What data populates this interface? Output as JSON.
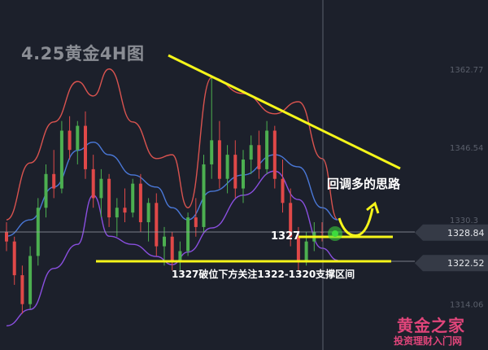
{
  "title": "4.25黄金4H图",
  "annotations": {
    "strategy": "回调多的思路",
    "level_label": "1327",
    "support_note": "1327破位下方关注1322-1320支撑区间"
  },
  "watermark": {
    "line1": "黄金之家",
    "line2": "投资理财入门网"
  },
  "colors": {
    "background": "#1c202b",
    "up": "#4caf50",
    "down": "#e04848",
    "upper_band": "#d9534f",
    "middle_band": "#4a78d8",
    "lower_band": "#8a4fe0",
    "annotation": "#f5f51a"
  },
  "chart_data": {
    "type": "candlestick",
    "title": "4.25黄金4H图",
    "y_ticks": [
      "1362.77",
      "1346.54",
      "1330.3",
      "1314.06"
    ],
    "ylim": [
      1306,
      1375
    ],
    "grid": false,
    "price_tags": [
      {
        "label": "1328.84",
        "value": 1328.84
      },
      {
        "label": "1322.52",
        "value": 1322.52
      }
    ],
    "horizontal_levels": [
      1327,
      1322.5
    ],
    "candles": [
      [
        1329,
        1331,
        1325,
        1327
      ],
      [
        1327,
        1328,
        1318,
        1320
      ],
      [
        1320,
        1322,
        1312,
        1314
      ],
      [
        1314,
        1326,
        1313,
        1324
      ],
      [
        1324,
        1336,
        1322,
        1334
      ],
      [
        1334,
        1343,
        1332,
        1341
      ],
      [
        1341,
        1346,
        1336,
        1338
      ],
      [
        1338,
        1352,
        1337,
        1350
      ],
      [
        1350,
        1353,
        1344,
        1346
      ],
      [
        1346,
        1352,
        1343,
        1351
      ],
      [
        1351,
        1354,
        1340,
        1342
      ],
      [
        1342,
        1345,
        1334,
        1336
      ],
      [
        1336,
        1342,
        1332,
        1340
      ],
      [
        1340,
        1341,
        1330,
        1332
      ],
      [
        1332,
        1336,
        1328,
        1334
      ],
      [
        1334,
        1338,
        1331,
        1333
      ],
      [
        1333,
        1340,
        1332,
        1339
      ],
      [
        1339,
        1341,
        1329,
        1331
      ],
      [
        1331,
        1336,
        1327,
        1335
      ],
      [
        1335,
        1337,
        1324,
        1326
      ],
      [
        1326,
        1330,
        1322,
        1328
      ],
      [
        1328,
        1329,
        1321,
        1323
      ],
      [
        1323,
        1327,
        1321,
        1325
      ],
      [
        1325,
        1333,
        1324,
        1332
      ],
      [
        1332,
        1336,
        1328,
        1330
      ],
      [
        1330,
        1345,
        1329,
        1343
      ],
      [
        1343,
        1361,
        1340,
        1348
      ],
      [
        1348,
        1352,
        1338,
        1340
      ],
      [
        1340,
        1347,
        1337,
        1345
      ],
      [
        1345,
        1348,
        1336,
        1338
      ],
      [
        1338,
        1346,
        1335,
        1344
      ],
      [
        1344,
        1349,
        1341,
        1347
      ],
      [
        1347,
        1350,
        1340,
        1342
      ],
      [
        1342,
        1352,
        1341,
        1350
      ],
      [
        1350,
        1351,
        1338,
        1340
      ],
      [
        1340,
        1344,
        1333,
        1335
      ],
      [
        1335,
        1338,
        1326,
        1328
      ],
      [
        1328,
        1330,
        1321,
        1323
      ],
      [
        1323,
        1329,
        1322,
        1327
      ],
      [
        1327,
        1331,
        1325,
        1329
      ],
      [
        1329,
        1331,
        1327,
        1328.84
      ]
    ],
    "bands": {
      "index": [
        0,
        3,
        6,
        9,
        11,
        13,
        16,
        19,
        21,
        23,
        26,
        30,
        34,
        37,
        40,
        42
      ],
      "upper": [
        1331.5,
        1343.3,
        1351.8,
        1360.2,
        1357.2,
        1362.8,
        1351.8,
        1344.2,
        1345,
        1334,
        1361,
        1357.7,
        1353.5,
        1356,
        1344.2,
        1331.5
      ],
      "middle": [
        1328.1,
        1331.5,
        1338.3,
        1345.9,
        1347.6,
        1345,
        1340.8,
        1338.3,
        1334,
        1331.5,
        1337.4,
        1340.8,
        1345,
        1342.5,
        1334,
        1331.5
      ],
      "lower": [
        1309.5,
        1312.9,
        1321.4,
        1326.4,
        1336.6,
        1328.1,
        1326.4,
        1323.9,
        1322.2,
        1324.8,
        1329.8,
        1336.6,
        1341.6,
        1335.7,
        1325.6,
        1323.1
      ]
    }
  }
}
